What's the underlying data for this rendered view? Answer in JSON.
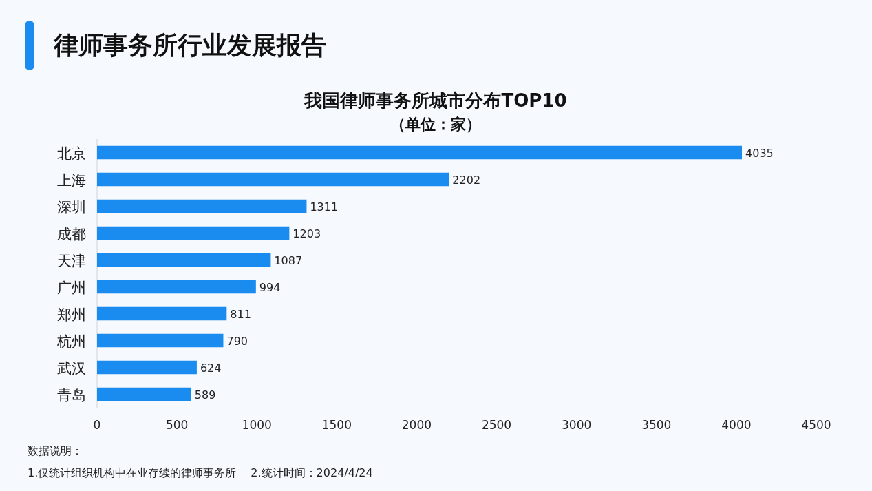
{
  "chart_data": {
    "type": "bar",
    "orientation": "horizontal",
    "title": "我国律师事务所城市分布TOP10",
    "subtitle": "（单位：家）",
    "categories": [
      "北京",
      "上海",
      "深圳",
      "成都",
      "天津",
      "广州",
      "郑州",
      "杭州",
      "武汉",
      "青岛"
    ],
    "values": [
      4035,
      2202,
      1311,
      1203,
      1087,
      994,
      811,
      790,
      624,
      589
    ],
    "color": "#1a8cf0",
    "xlim": [
      0,
      4500
    ],
    "xticks": [
      0,
      500,
      1000,
      1500,
      2000,
      2500,
      3000,
      3500,
      4000,
      4500
    ],
    "data_labels": true,
    "annotations": [
      "律师事务所行业发展报告",
      "数据说明：",
      "1.仅统计组织机构中在业存续的律师事务所　 2.统计时间：2024/4/24"
    ]
  }
}
